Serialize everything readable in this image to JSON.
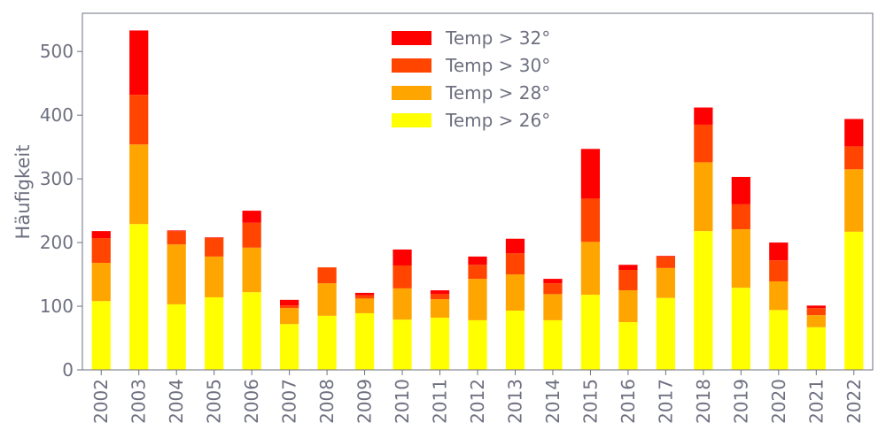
{
  "chart_data": {
    "type": "bar",
    "stacked": true,
    "title": "",
    "xlabel": "",
    "ylabel": "Häufigkeit",
    "ylim": [
      0,
      560
    ],
    "yticks": [
      0,
      100,
      200,
      300,
      400,
      500
    ],
    "grid": false,
    "legend_position": "top-center",
    "categories": [
      "2002",
      "2003",
      "2004",
      "2005",
      "2006",
      "2007",
      "2008",
      "2009",
      "2010",
      "2011",
      "2012",
      "2013",
      "2014",
      "2015",
      "2016",
      "2017",
      "2018",
      "2019",
      "2020",
      "2021",
      "2022"
    ],
    "series": [
      {
        "name": "Temp > 26°",
        "color": "#ffff00",
        "values": [
          108,
          229,
          103,
          114,
          122,
          72,
          85,
          89,
          79,
          82,
          78,
          93,
          78,
          118,
          75,
          113,
          218,
          129,
          94,
          67,
          217
        ]
      },
      {
        "name": "Temp > 28°",
        "color": "#ffa500",
        "values": [
          60,
          125,
          94,
          64,
          70,
          25,
          51,
          23,
          49,
          29,
          65,
          57,
          41,
          83,
          50,
          47,
          108,
          92,
          45,
          19,
          98
        ]
      },
      {
        "name": "Temp > 30°",
        "color": "#ff4500",
        "values": [
          39,
          78,
          21,
          29,
          39,
          4,
          25,
          5,
          36,
          8,
          22,
          33,
          17,
          68,
          32,
          18,
          59,
          39,
          33,
          11,
          36
        ]
      },
      {
        "name": "Temp > 32°",
        "color": "#ff0000",
        "values": [
          11,
          101,
          1,
          1,
          19,
          9,
          0,
          4,
          25,
          6,
          13,
          23,
          7,
          78,
          8,
          1,
          27,
          43,
          28,
          4,
          43
        ]
      }
    ]
  }
}
